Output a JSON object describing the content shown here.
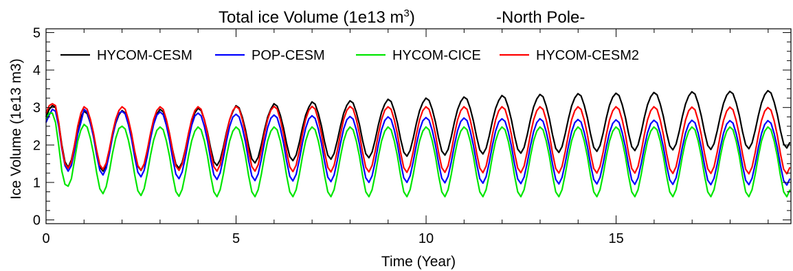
{
  "chart_data": {
    "type": "line",
    "title": "Total ice Volume (1e13 m",
    "title_superscript": "3",
    "title_suffix": ")",
    "subtitle": "-North Pole-",
    "xlabel": "Time (Year)",
    "ylabel": "Ice Volume (1e13 m3)",
    "xlim": [
      0,
      19.6
    ],
    "ylim": [
      -0.1,
      5.1
    ],
    "x_ticks": [
      0,
      5,
      10,
      15
    ],
    "y_ticks": [
      0,
      1,
      2,
      3,
      4,
      5
    ],
    "x_minor_step": 1,
    "y_minor_step": 0.25,
    "grid": false,
    "legend_position": "top-left",
    "sampling": "monthly",
    "x_start": 0,
    "x_step": 0.0833,
    "series": [
      {
        "name": "HYCOM-CESM",
        "color": "#000000",
        "seasonal_cycle_first_year": [
          2.75,
          2.95,
          3.05,
          3.0,
          2.6,
          2.0,
          1.55,
          1.4,
          1.6,
          2.0,
          2.45,
          2.75
        ],
        "annual_max": [
          3.05,
          2.9,
          2.92,
          2.95,
          2.98,
          3.05,
          3.1,
          3.15,
          3.18,
          3.22,
          3.25,
          3.28,
          3.32,
          3.35,
          3.37,
          3.38,
          3.4,
          3.42,
          3.43,
          3.45
        ],
        "annual_min": [
          1.4,
          1.3,
          1.32,
          1.38,
          1.45,
          1.52,
          1.58,
          1.62,
          1.66,
          1.7,
          1.73,
          1.76,
          1.78,
          1.8,
          1.83,
          1.85,
          1.87,
          1.88,
          1.9,
          1.92
        ]
      },
      {
        "name": "POP-CESM",
        "color": "#0000ff",
        "seasonal_cycle_first_year": [
          2.6,
          2.8,
          2.95,
          2.9,
          2.5,
          1.9,
          1.45,
          1.3,
          1.45,
          1.85,
          2.3,
          2.6
        ],
        "annual_max": [
          2.95,
          2.95,
          2.9,
          2.88,
          2.85,
          2.82,
          2.8,
          2.78,
          2.76,
          2.75,
          2.73,
          2.72,
          2.7,
          2.7,
          2.68,
          2.67,
          2.66,
          2.66,
          2.65,
          2.65
        ],
        "annual_min": [
          1.3,
          1.2,
          1.15,
          1.1,
          1.08,
          1.05,
          1.04,
          1.02,
          1.0,
          1.0,
          0.99,
          0.98,
          0.97,
          0.96,
          0.96,
          0.95,
          0.95,
          0.94,
          0.94,
          0.93
        ]
      },
      {
        "name": "HYCOM-CICE",
        "color": "#00e600",
        "seasonal_cycle_first_year": [
          2.7,
          2.85,
          2.85,
          2.6,
          2.0,
          1.3,
          0.95,
          0.9,
          1.1,
          1.6,
          2.1,
          2.4
        ],
        "annual_max": [
          2.85,
          2.55,
          2.5,
          2.48,
          2.48,
          2.48,
          2.48,
          2.48,
          2.48,
          2.48,
          2.48,
          2.48,
          2.48,
          2.48,
          2.48,
          2.48,
          2.48,
          2.48,
          2.48,
          2.48
        ],
        "annual_min": [
          0.9,
          0.7,
          0.65,
          0.63,
          0.62,
          0.62,
          0.62,
          0.62,
          0.62,
          0.62,
          0.62,
          0.62,
          0.62,
          0.62,
          0.62,
          0.62,
          0.62,
          0.62,
          0.62,
          0.62
        ]
      },
      {
        "name": "HYCOM-CESM2",
        "color": "#ff0000",
        "seasonal_cycle_first_year": [
          2.85,
          3.05,
          3.1,
          3.05,
          2.6,
          1.95,
          1.5,
          1.38,
          1.55,
          2.0,
          2.5,
          2.85
        ],
        "annual_max": [
          3.1,
          3.02,
          3.02,
          3.02,
          3.02,
          3.03,
          3.03,
          3.03,
          3.03,
          3.02,
          3.02,
          3.02,
          3.02,
          3.02,
          3.02,
          3.02,
          3.02,
          3.01,
          3.01,
          3.0
        ],
        "annual_min": [
          1.38,
          1.35,
          1.33,
          1.32,
          1.3,
          1.3,
          1.29,
          1.28,
          1.28,
          1.27,
          1.27,
          1.26,
          1.26,
          1.25,
          1.25,
          1.25,
          1.24,
          1.24,
          1.23,
          1.23
        ]
      }
    ]
  }
}
